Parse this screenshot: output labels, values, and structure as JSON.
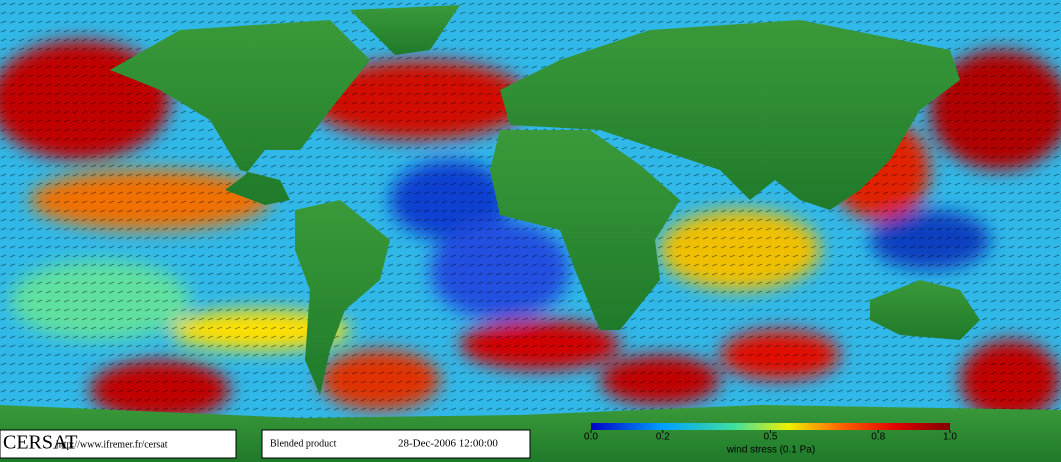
{
  "header": {
    "logo": "CERSAT",
    "url": "http://www.ifremer.fr/cersat"
  },
  "product": {
    "name": "Blended product",
    "date": "28-Dec-2006 12:00:00"
  },
  "colorbar": {
    "label": "wind stress (0.1 Pa)",
    "lim": [
      0,
      1
    ],
    "ticks": [
      {
        "value": 0,
        "label": "0.0"
      },
      0.2,
      0.5,
      0.8,
      {
        "value": 1,
        "label": "1.0"
      }
    ]
  }
}
